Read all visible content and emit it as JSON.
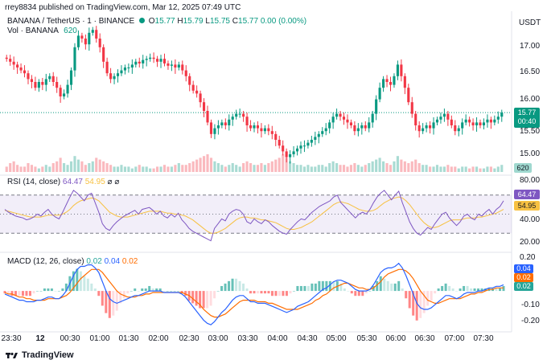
{
  "header": {
    "published": "rrey8834 published on TradingView.com, Mar 12, 2025 07:49 UTC",
    "symbol": "BANANA / TetherUS · 1 · BINANCE",
    "o_label": "O",
    "o": "15.77",
    "h_label": "H",
    "h": "15.79",
    "l_label": "L",
    "l": "15.75",
    "c_label": "C",
    "c": "15.77",
    "change": "0.00 (0.00%)",
    "vol_label": "Vol · BANANA",
    "vol": "620"
  },
  "price_scale": {
    "currency": "USDT",
    "ticks": [
      "17.00",
      "16.50",
      "16.00",
      "15.50",
      "15.00"
    ],
    "last_price": "15.77",
    "countdown": "00:40",
    "volume_tag": "620"
  },
  "rsi": {
    "label": "RSI (14, close)",
    "value": "64.47",
    "ma_value": "54.95",
    "symbols": "⌀ ⌀",
    "ticks": [
      "80.00",
      "40.00",
      "20.00"
    ]
  },
  "macd": {
    "label": "MACD (12, 26, close)",
    "hist": "0.02",
    "macd": "0.04",
    "signal": "0.02",
    "ticks": [
      "0.20",
      "-0.10",
      "-0.20"
    ],
    "tags": [
      "0.04",
      "0.02",
      "0.02"
    ]
  },
  "time_axis": [
    "23:30",
    "12",
    "00:30",
    "01:00",
    "01:30",
    "02:00",
    "02:30",
    "03:00",
    "03:30",
    "04:00",
    "04:30",
    "05:00",
    "05:30",
    "06:00",
    "06:30",
    "07:00",
    "07:30"
  ],
  "footer": {
    "brand": "TradingView"
  },
  "colors": {
    "up": "#089981",
    "down": "#f23645",
    "rsi": "#7e57c2",
    "rsi_ma": "#f7c142",
    "macd": "#2962ff",
    "signal": "#ff6d00"
  },
  "chart_data": [
    {
      "type": "candlestick",
      "title": "BANANA / TetherUS · 1 · BINANCE",
      "ylim": [
        14.8,
        17.3
      ],
      "close": [
        16.7,
        16.65,
        16.6,
        16.55,
        16.5,
        16.45,
        16.35,
        16.3,
        16.2,
        16.3,
        16.25,
        16.35,
        16.4,
        16.3,
        16.2,
        16.05,
        16.1,
        16.25,
        16.5,
        16.9,
        17.1,
        17.05,
        16.95,
        17.15,
        17.2,
        17.05,
        16.9,
        16.65,
        16.45,
        16.35,
        16.4,
        16.45,
        16.5,
        16.55,
        16.55,
        16.6,
        16.65,
        16.62,
        16.68,
        16.7,
        16.72,
        16.7,
        16.65,
        16.7,
        16.62,
        16.58,
        16.6,
        16.55,
        16.6,
        16.5,
        16.4,
        16.25,
        16.15,
        16.1,
        15.95,
        15.8,
        15.6,
        15.4,
        15.5,
        15.55,
        15.6,
        15.55,
        15.65,
        15.7,
        15.75,
        15.75,
        15.7,
        15.55,
        15.5,
        15.55,
        15.5,
        15.45,
        15.5,
        15.45,
        15.4,
        15.3,
        15.2,
        15.1,
        15.0,
        15.05,
        15.1,
        15.15,
        15.2,
        15.2,
        15.25,
        15.3,
        15.35,
        15.4,
        15.45,
        15.5,
        15.6,
        15.7,
        15.75,
        15.7,
        15.65,
        15.6,
        15.55,
        15.45,
        15.5,
        15.55,
        15.5,
        15.6,
        15.75,
        16.0,
        16.2,
        16.35,
        16.3,
        16.25,
        16.4,
        16.6,
        16.4,
        16.2,
        15.95,
        15.75,
        15.55,
        15.45,
        15.5,
        15.55,
        15.5,
        15.6,
        15.65,
        15.7,
        15.75,
        15.65,
        15.55,
        15.45,
        15.5,
        15.6,
        15.65,
        15.6,
        15.55,
        15.6,
        15.55,
        15.6,
        15.65,
        15.6,
        15.65,
        15.7,
        15.77
      ]
    },
    {
      "type": "bar",
      "title": "Vol · BANANA",
      "values_note": "relative volume, last bar 620",
      "values": [
        0.3,
        0.5,
        0.6,
        0.4,
        0.3,
        0.3,
        0.5,
        0.4,
        0.3,
        0.2,
        0.3,
        0.4,
        0.3,
        0.5,
        0.6,
        0.8,
        0.5,
        0.4,
        0.6,
        0.9,
        0.7,
        0.6,
        0.4,
        0.5,
        0.6,
        0.8,
        0.7,
        0.6,
        0.5,
        0.4,
        0.3,
        0.3,
        0.4,
        0.3,
        0.3,
        0.2,
        0.3,
        0.4,
        0.3,
        0.3,
        0.2,
        0.2,
        0.3,
        0.3,
        0.4,
        0.3,
        0.3,
        0.4,
        0.5,
        0.4,
        0.4,
        0.5,
        0.6,
        0.7,
        0.8,
        0.9,
        1.0,
        0.8,
        0.6,
        0.5,
        0.4,
        0.3,
        0.4,
        0.5,
        0.4,
        0.3,
        0.5,
        0.6,
        0.5,
        0.4,
        0.4,
        0.5,
        0.4,
        0.5,
        0.6,
        0.7,
        0.8,
        1.0,
        0.8,
        0.6,
        0.5,
        0.4,
        0.4,
        0.3,
        0.4,
        0.3,
        0.3,
        0.4,
        0.4,
        0.3,
        0.5,
        0.6,
        0.5,
        0.4,
        0.4,
        0.3,
        0.4,
        0.5,
        0.4,
        0.3,
        0.4,
        0.5,
        0.6,
        0.7,
        0.8,
        0.6,
        0.5,
        0.4,
        0.6,
        0.9,
        0.7,
        0.6,
        0.5,
        0.6,
        0.7,
        0.5,
        0.4,
        0.4,
        0.3,
        0.3,
        0.4,
        0.3,
        0.3,
        0.4,
        0.3,
        0.3,
        0.2,
        0.3,
        0.3,
        0.2,
        0.3,
        0.3,
        0.2,
        0.2,
        0.3,
        0.3,
        0.2,
        0.3,
        0.4
      ]
    },
    {
      "type": "line",
      "title": "RSI (14, close)",
      "ylim": [
        15,
        85
      ],
      "series": [
        {
          "name": "RSI",
          "values": [
            55,
            52,
            50,
            48,
            47,
            46,
            44,
            45,
            47,
            50,
            48,
            52,
            55,
            50,
            47,
            45,
            52,
            60,
            68,
            75,
            72,
            68,
            64,
            70,
            72,
            62,
            52,
            40,
            35,
            33,
            38,
            42,
            45,
            48,
            50,
            52,
            54,
            50,
            55,
            56,
            57,
            54,
            50,
            53,
            48,
            46,
            50,
            47,
            51,
            44,
            40,
            35,
            32,
            30,
            28,
            26,
            24,
            22,
            35,
            40,
            45,
            43,
            50,
            53,
            55,
            54,
            50,
            42,
            40,
            45,
            42,
            40,
            44,
            42,
            38,
            35,
            32,
            30,
            29,
            34,
            38,
            42,
            45,
            44,
            48,
            52,
            55,
            58,
            60,
            62,
            64,
            68,
            70,
            62,
            58,
            54,
            50,
            46,
            50,
            52,
            50,
            55,
            62,
            68,
            72,
            75,
            70,
            65,
            70,
            74,
            62,
            52,
            42,
            35,
            30,
            28,
            32,
            36,
            34,
            40,
            45,
            50,
            52,
            46,
            42,
            38,
            42,
            48,
            50,
            46,
            44,
            50,
            48,
            52,
            55,
            50,
            55,
            58,
            64
          ]
        },
        {
          "name": "RSI-based MA",
          "values": [
            54,
            53,
            52,
            51,
            50,
            49,
            48,
            47,
            47,
            47,
            47,
            48,
            49,
            49,
            49,
            49,
            50,
            52,
            55,
            59,
            62,
            64,
            65,
            66,
            67,
            66,
            64,
            60,
            56,
            52,
            50,
            48,
            47,
            47,
            47,
            48,
            49,
            50,
            51,
            52,
            53,
            53,
            53,
            53,
            52,
            51,
            51,
            50,
            50,
            49,
            48,
            46,
            44,
            41,
            38,
            35,
            32,
            30,
            30,
            31,
            33,
            35,
            38,
            41,
            44,
            46,
            47,
            47,
            46,
            46,
            45,
            44,
            44,
            43,
            42,
            41,
            39,
            37,
            35,
            34,
            34,
            35,
            36,
            38,
            40,
            42,
            45,
            48,
            51,
            54,
            57,
            60,
            62,
            63,
            62,
            61,
            59,
            57,
            55,
            54,
            53,
            53,
            54,
            56,
            59,
            62,
            64,
            66,
            67,
            68,
            67,
            64,
            60,
            55,
            50,
            45,
            41,
            38,
            36,
            36,
            37,
            39,
            41,
            43,
            44,
            44,
            44,
            45,
            46,
            46,
            46,
            47,
            47,
            48,
            49,
            50,
            51,
            53,
            55
          ]
        }
      ]
    },
    {
      "type": "line",
      "title": "MACD (12, 26, close)",
      "ylim": [
        -0.24,
        0.22
      ],
      "series": [
        {
          "name": "MACD",
          "values": [
            -0.02,
            -0.03,
            -0.04,
            -0.05,
            -0.06,
            -0.06,
            -0.07,
            -0.07,
            -0.07,
            -0.06,
            -0.06,
            -0.05,
            -0.04,
            -0.04,
            -0.05,
            -0.05,
            -0.03,
            0.0,
            0.05,
            0.1,
            0.14,
            0.16,
            0.16,
            0.17,
            0.17,
            0.15,
            0.12,
            0.06,
            0.0,
            -0.05,
            -0.07,
            -0.08,
            -0.07,
            -0.06,
            -0.05,
            -0.04,
            -0.03,
            -0.03,
            -0.02,
            -0.01,
            0.0,
            0.0,
            0.0,
            0.0,
            -0.01,
            -0.01,
            -0.01,
            -0.01,
            -0.01,
            -0.02,
            -0.04,
            -0.07,
            -0.1,
            -0.13,
            -0.16,
            -0.19,
            -0.21,
            -0.22,
            -0.2,
            -0.17,
            -0.14,
            -0.12,
            -0.09,
            -0.06,
            -0.04,
            -0.03,
            -0.03,
            -0.05,
            -0.07,
            -0.07,
            -0.08,
            -0.08,
            -0.08,
            -0.09,
            -0.1,
            -0.11,
            -0.12,
            -0.13,
            -0.14,
            -0.13,
            -0.12,
            -0.1,
            -0.09,
            -0.08,
            -0.07,
            -0.05,
            -0.03,
            -0.01,
            0.01,
            0.02,
            0.04,
            0.06,
            0.07,
            0.07,
            0.06,
            0.05,
            0.03,
            0.01,
            0.0,
            0.0,
            0.0,
            0.01,
            0.04,
            0.08,
            0.12,
            0.14,
            0.15,
            0.15,
            0.16,
            0.18,
            0.15,
            0.1,
            0.04,
            -0.02,
            -0.08,
            -0.11,
            -0.12,
            -0.12,
            -0.11,
            -0.09,
            -0.07,
            -0.05,
            -0.03,
            -0.03,
            -0.04,
            -0.05,
            -0.04,
            -0.02,
            -0.01,
            -0.01,
            -0.01,
            0.0,
            0.0,
            0.01,
            0.02,
            0.02,
            0.03,
            0.03,
            0.04
          ]
        },
        {
          "name": "Signal",
          "values": [
            -0.01,
            -0.02,
            -0.02,
            -0.03,
            -0.04,
            -0.04,
            -0.05,
            -0.05,
            -0.06,
            -0.06,
            -0.06,
            -0.06,
            -0.05,
            -0.05,
            -0.05,
            -0.05,
            -0.04,
            -0.03,
            -0.01,
            0.02,
            0.05,
            0.08,
            0.1,
            0.12,
            0.14,
            0.14,
            0.14,
            0.12,
            0.09,
            0.06,
            0.03,
            0.0,
            -0.02,
            -0.03,
            -0.04,
            -0.04,
            -0.04,
            -0.03,
            -0.03,
            -0.02,
            -0.02,
            -0.01,
            -0.01,
            -0.01,
            -0.01,
            -0.01,
            -0.01,
            -0.01,
            -0.01,
            -0.01,
            -0.02,
            -0.03,
            -0.05,
            -0.07,
            -0.09,
            -0.12,
            -0.14,
            -0.16,
            -0.17,
            -0.17,
            -0.16,
            -0.15,
            -0.13,
            -0.11,
            -0.09,
            -0.07,
            -0.06,
            -0.06,
            -0.06,
            -0.06,
            -0.07,
            -0.07,
            -0.07,
            -0.08,
            -0.08,
            -0.09,
            -0.1,
            -0.11,
            -0.12,
            -0.12,
            -0.12,
            -0.12,
            -0.11,
            -0.1,
            -0.09,
            -0.08,
            -0.06,
            -0.05,
            -0.03,
            -0.02,
            0.0,
            0.02,
            0.03,
            0.04,
            0.05,
            0.05,
            0.04,
            0.03,
            0.02,
            0.02,
            0.01,
            0.01,
            0.02,
            0.04,
            0.06,
            0.09,
            0.11,
            0.12,
            0.13,
            0.14,
            0.14,
            0.13,
            0.11,
            0.08,
            0.04,
            0.0,
            -0.03,
            -0.06,
            -0.07,
            -0.08,
            -0.08,
            -0.07,
            -0.06,
            -0.05,
            -0.05,
            -0.05,
            -0.05,
            -0.04,
            -0.03,
            -0.02,
            -0.02,
            -0.01,
            -0.01,
            0.0,
            0.01,
            0.01,
            0.02,
            0.02,
            0.02
          ]
        }
      ]
    }
  ]
}
